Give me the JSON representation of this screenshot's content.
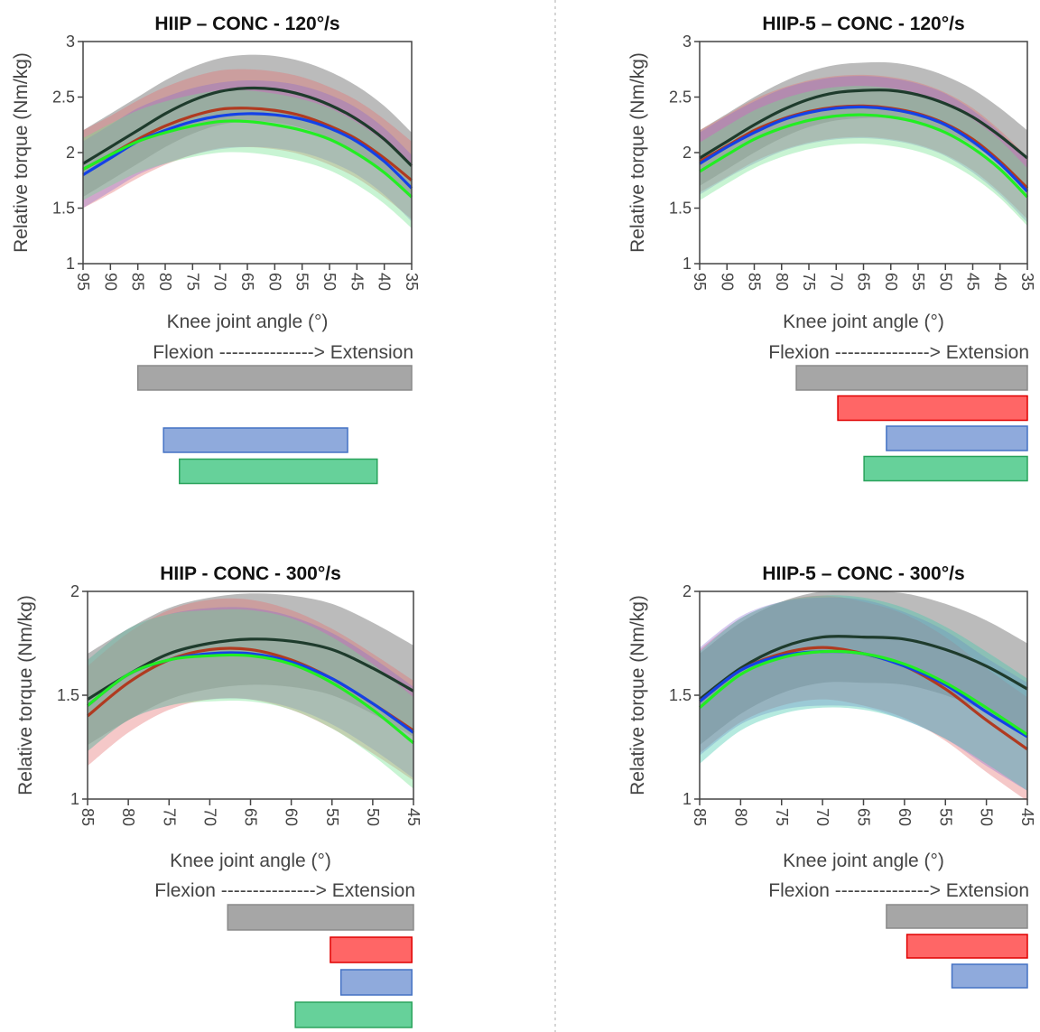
{
  "chart_data": [
    {
      "type": "line",
      "title": "HIIP – CONC - 120°/s",
      "xlabel": "Knee joint angle (°)",
      "ylabel": "Relative torque (Nm/kg)",
      "direction_label": "Flexion ---------------> Extension",
      "x": [
        95,
        90,
        85,
        80,
        75,
        70,
        65,
        60,
        55,
        50,
        45,
        40,
        35
      ],
      "xlim": [
        95,
        35
      ],
      "ylim": [
        1,
        3
      ],
      "yticks": [
        1,
        1.5,
        2,
        2.5,
        3
      ],
      "yticklabels": [
        "1",
        "1.5",
        "2",
        "2.5",
        "3"
      ],
      "series": [
        {
          "color": "#1e3b2c",
          "band": "rgba(120,120,120,0.5)",
          "sd": 0.3,
          "values": [
            1.9,
            2.05,
            2.2,
            2.35,
            2.47,
            2.55,
            2.58,
            2.57,
            2.52,
            2.43,
            2.3,
            2.12,
            1.88
          ]
        },
        {
          "color": "#b03a20",
          "band": "rgba(230,110,110,0.38)",
          "sd": 0.35,
          "values": [
            1.85,
            1.98,
            2.12,
            2.24,
            2.33,
            2.39,
            2.4,
            2.38,
            2.33,
            2.24,
            2.12,
            1.95,
            1.75
          ]
        },
        {
          "color": "#1442e6",
          "band": "rgba(130,100,210,0.33)",
          "sd": 0.3,
          "values": [
            1.8,
            1.95,
            2.1,
            2.2,
            2.28,
            2.33,
            2.35,
            2.34,
            2.3,
            2.22,
            2.1,
            1.92,
            1.68
          ]
        },
        {
          "color": "#22ee22",
          "band": "rgba(110,225,140,0.38)",
          "sd": 0.28,
          "values": [
            1.85,
            1.98,
            2.1,
            2.18,
            2.24,
            2.28,
            2.28,
            2.25,
            2.2,
            2.12,
            1.99,
            1.82,
            1.6
          ]
        }
      ],
      "range_bars": [
        {
          "color": "#a6a6a6",
          "stroke": "#8a8a8a",
          "from": 85,
          "to": 35
        },
        null,
        {
          "color": "#8faadc",
          "stroke": "#4472c4",
          "from": 80.3,
          "to": 46.7
        },
        {
          "color": "#66d19a",
          "stroke": "#2aa35c",
          "from": 77.4,
          "to": 41.3
        }
      ]
    },
    {
      "type": "line",
      "title": "HIIP-5 – CONC - 120°/s",
      "xlabel": "Knee joint angle (°)",
      "ylabel": "Relative torque (Nm/kg)",
      "direction_label": "Flexion ---------------> Extension",
      "x": [
        95,
        90,
        85,
        80,
        75,
        70,
        65,
        60,
        55,
        50,
        45,
        40,
        35
      ],
      "xlim": [
        95,
        35
      ],
      "ylim": [
        1,
        3
      ],
      "yticks": [
        1,
        1.5,
        2,
        2.5,
        3
      ],
      "yticklabels": [
        "1",
        "1.5",
        "2",
        "2.5",
        "3"
      ],
      "series": [
        {
          "color": "#1e3b2c",
          "band": "rgba(120,120,120,0.5)",
          "sd": 0.25,
          "values": [
            1.95,
            2.1,
            2.25,
            2.38,
            2.48,
            2.54,
            2.56,
            2.56,
            2.52,
            2.44,
            2.32,
            2.15,
            1.95
          ]
        },
        {
          "color": "#b03a20",
          "band": "rgba(230,110,110,0.38)",
          "sd": 0.28,
          "values": [
            1.92,
            2.06,
            2.2,
            2.3,
            2.37,
            2.41,
            2.42,
            2.4,
            2.35,
            2.26,
            2.12,
            1.92,
            1.68
          ]
        },
        {
          "color": "#1442e6",
          "band": "rgba(130,100,210,0.33)",
          "sd": 0.28,
          "values": [
            1.9,
            2.05,
            2.18,
            2.29,
            2.36,
            2.4,
            2.41,
            2.39,
            2.34,
            2.25,
            2.1,
            1.9,
            1.65
          ]
        },
        {
          "color": "#22ee22",
          "band": "rgba(110,225,140,0.38)",
          "sd": 0.26,
          "values": [
            1.83,
            1.98,
            2.12,
            2.22,
            2.29,
            2.33,
            2.34,
            2.32,
            2.27,
            2.18,
            2.04,
            1.85,
            1.6
          ]
        }
      ],
      "range_bars": [
        {
          "color": "#a6a6a6",
          "stroke": "#8a8a8a",
          "from": 77.3,
          "to": 35
        },
        {
          "color": "#ff6666",
          "stroke": "#e00000",
          "from": 69.7,
          "to": 35
        },
        {
          "color": "#8faadc",
          "stroke": "#4472c4",
          "from": 60.8,
          "to": 35
        },
        {
          "color": "#66d19a",
          "stroke": "#2aa35c",
          "from": 64.9,
          "to": 35
        }
      ]
    },
    {
      "type": "line",
      "title": "HIIP - CONC - 300°/s",
      "xlabel": "Knee joint angle (°)",
      "ylabel": "Relative torque (Nm/kg)",
      "direction_label": "Flexion ---------------> Extension",
      "x": [
        85,
        80,
        75,
        70,
        65,
        60,
        55,
        50,
        45
      ],
      "xlim": [
        85,
        45
      ],
      "ylim": [
        1,
        2
      ],
      "yticks": [
        1,
        1.5,
        2
      ],
      "yticklabels": [
        "1",
        "1.5",
        "2"
      ],
      "series": [
        {
          "color": "#1e3b2c",
          "band": "rgba(120,120,120,0.5)",
          "sd": 0.22,
          "values": [
            1.48,
            1.6,
            1.7,
            1.75,
            1.77,
            1.76,
            1.72,
            1.63,
            1.52
          ]
        },
        {
          "color": "#b03a20",
          "band": "rgba(230,110,110,0.38)",
          "sd": 0.24,
          "values": [
            1.4,
            1.56,
            1.67,
            1.72,
            1.72,
            1.67,
            1.58,
            1.46,
            1.33
          ]
        },
        {
          "color": "#1442e6",
          "band": "rgba(130,100,210,0.33)",
          "sd": 0.22,
          "values": [
            1.45,
            1.6,
            1.67,
            1.7,
            1.7,
            1.66,
            1.58,
            1.46,
            1.32
          ]
        },
        {
          "color": "#22ee22",
          "band": "rgba(110,225,140,0.38)",
          "sd": 0.22,
          "values": [
            1.45,
            1.6,
            1.67,
            1.69,
            1.69,
            1.65,
            1.56,
            1.43,
            1.27
          ]
        }
      ],
      "range_bars": [
        {
          "color": "#a6a6a6",
          "stroke": "#8a8a8a",
          "from": 67.8,
          "to": 45
        },
        {
          "color": "#ff6666",
          "stroke": "#e00000",
          "from": 55.2,
          "to": 45.2
        },
        {
          "color": "#8faadc",
          "stroke": "#4472c4",
          "from": 53.9,
          "to": 45.2
        },
        {
          "color": "#66d19a",
          "stroke": "#2aa35c",
          "from": 59.5,
          "to": 45.2
        }
      ]
    },
    {
      "type": "line",
      "title": "HIIP-5 – CONC - 300°/s",
      "xlabel": "Knee joint angle (°)",
      "ylabel": "Relative torque (Nm/kg)",
      "direction_label": "Flexion ---------------> Extension",
      "x": [
        85,
        80,
        75,
        70,
        65,
        60,
        55,
        50,
        45
      ],
      "xlim": [
        85,
        45
      ],
      "ylim": [
        1,
        2
      ],
      "yticks": [
        1,
        1.5,
        2
      ],
      "yticklabels": [
        "1",
        "1.5",
        "2"
      ],
      "series": [
        {
          "color": "#1e3b2c",
          "band": "rgba(120,120,120,0.5)",
          "sd": 0.22,
          "values": [
            1.48,
            1.63,
            1.73,
            1.78,
            1.78,
            1.77,
            1.72,
            1.64,
            1.53
          ]
        },
        {
          "color": "#b03a20",
          "band": "rgba(230,110,110,0.38)",
          "sd": 0.25,
          "values": [
            1.47,
            1.62,
            1.7,
            1.73,
            1.7,
            1.64,
            1.53,
            1.38,
            1.24
          ]
        },
        {
          "color": "#1442e6",
          "band": "rgba(130,100,210,0.33)",
          "sd": 0.26,
          "values": [
            1.47,
            1.62,
            1.69,
            1.71,
            1.7,
            1.64,
            1.55,
            1.42,
            1.3
          ]
        },
        {
          "color": "#22ee22",
          "band": "rgba(60,200,170,0.38)",
          "sd": 0.27,
          "values": [
            1.44,
            1.6,
            1.68,
            1.71,
            1.7,
            1.65,
            1.56,
            1.44,
            1.31
          ]
        }
      ],
      "range_bars": [
        {
          "color": "#a6a6a6",
          "stroke": "#8a8a8a",
          "from": 62.2,
          "to": 45
        },
        {
          "color": "#ff6666",
          "stroke": "#e00000",
          "from": 59.7,
          "to": 45
        },
        {
          "color": "#8faadc",
          "stroke": "#4472c4",
          "from": 54.2,
          "to": 45
        }
      ]
    }
  ]
}
